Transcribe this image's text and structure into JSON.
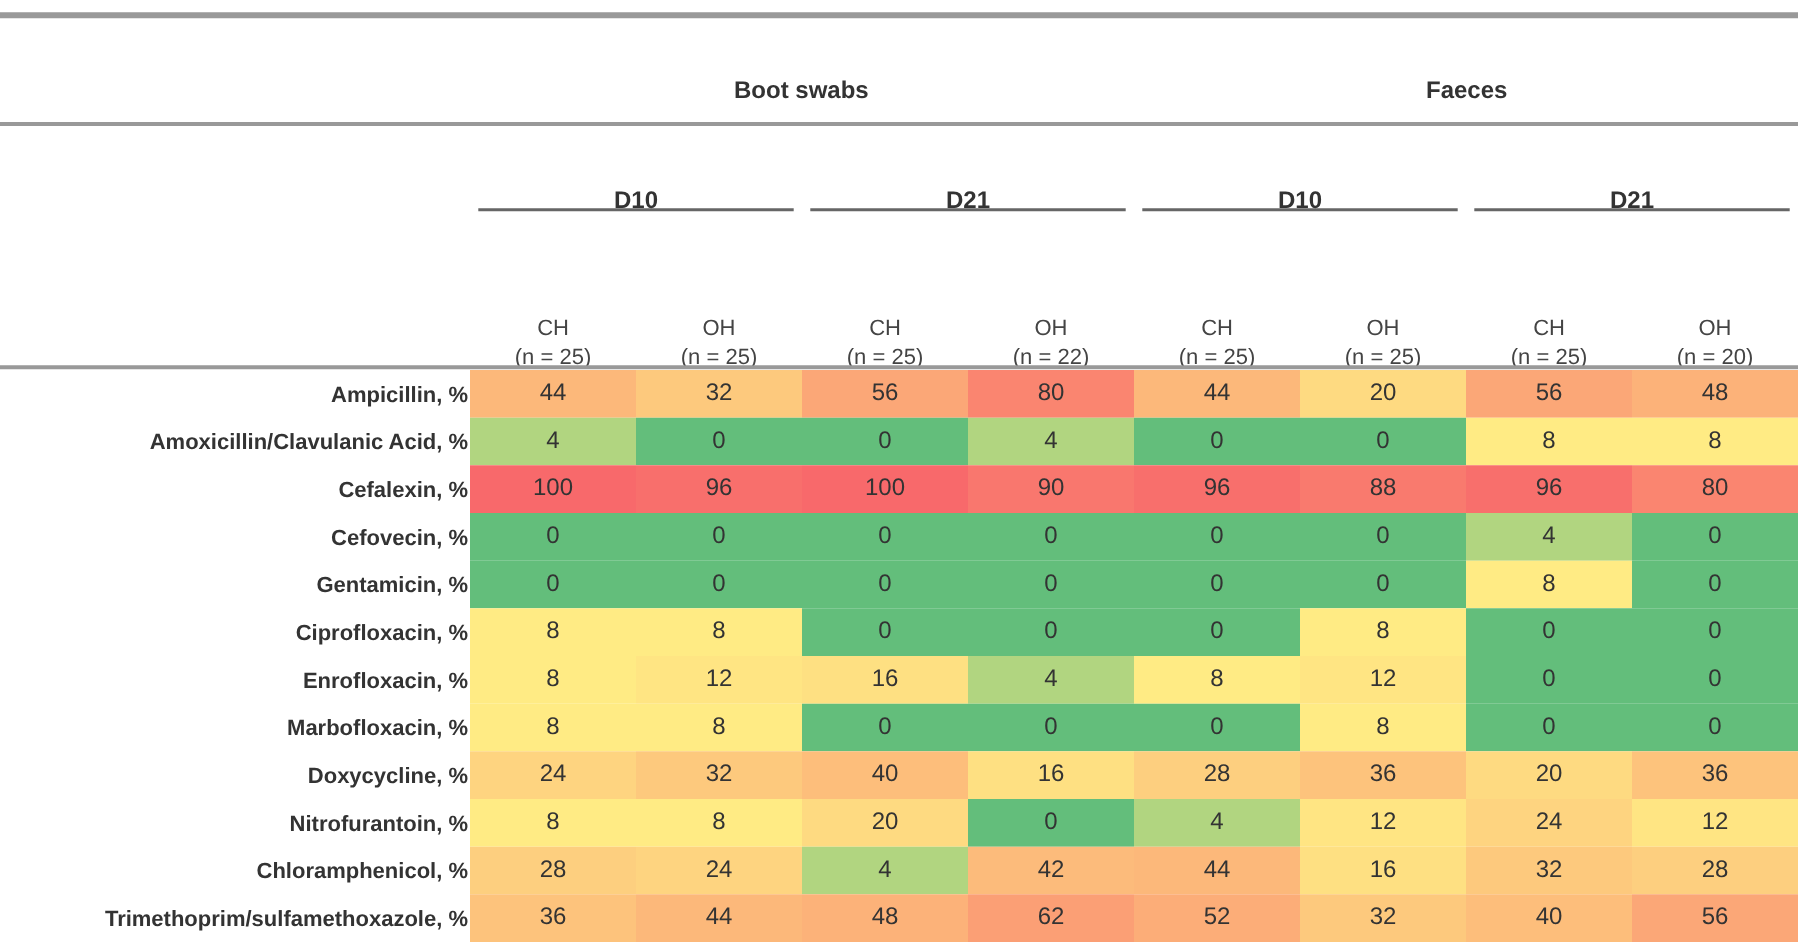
{
  "chart_data": {
    "type": "heatmap",
    "categories": [
      "CH (n = 25)",
      "OH (n = 25)",
      "CH (n = 25)",
      "OH (n = 22)",
      "CH (n = 25)",
      "OH (n = 25)",
      "CH (n = 25)",
      "OH (n = 20)"
    ],
    "y_categories": [
      "Ampicillin, %",
      "Amoxicillin/Clavulanic Acid, %",
      "Cefalexin, %",
      "Cefovecin, %",
      "Gentamicin, %",
      "Ciprofloxacin, %",
      "Enrofloxacin, %",
      "Marbofloxacin, %",
      "Doxycycline, %",
      "Nitrofurantoin, %",
      "Chloramphenicol, %",
      "Trimethoprim/sulfamethoxazole, %"
    ],
    "cells": [
      [
        44,
        32,
        56,
        80,
        44,
        20,
        56,
        48
      ],
      [
        4,
        0,
        0,
        4,
        0,
        0,
        8,
        8
      ],
      [
        100,
        96,
        100,
        90,
        96,
        88,
        96,
        80
      ],
      [
        0,
        0,
        0,
        0,
        0,
        0,
        4,
        0
      ],
      [
        0,
        0,
        0,
        0,
        0,
        0,
        8,
        0
      ],
      [
        8,
        8,
        0,
        0,
        0,
        8,
        0,
        0
      ],
      [
        8,
        12,
        16,
        4,
        8,
        12,
        0,
        0
      ],
      [
        8,
        8,
        0,
        0,
        0,
        8,
        0,
        0
      ],
      [
        24,
        32,
        40,
        16,
        28,
        36,
        20,
        36
      ],
      [
        8,
        8,
        20,
        0,
        4,
        12,
        24,
        12
      ],
      [
        28,
        24,
        4,
        42,
        44,
        16,
        32,
        28
      ],
      [
        36,
        44,
        48,
        62,
        52,
        32,
        40,
        56
      ]
    ],
    "data_labels": true,
    "annotations": [
      "Boot swabs",
      "Faeces",
      "D10",
      "D21",
      "D10",
      "D21"
    ]
  }
}
